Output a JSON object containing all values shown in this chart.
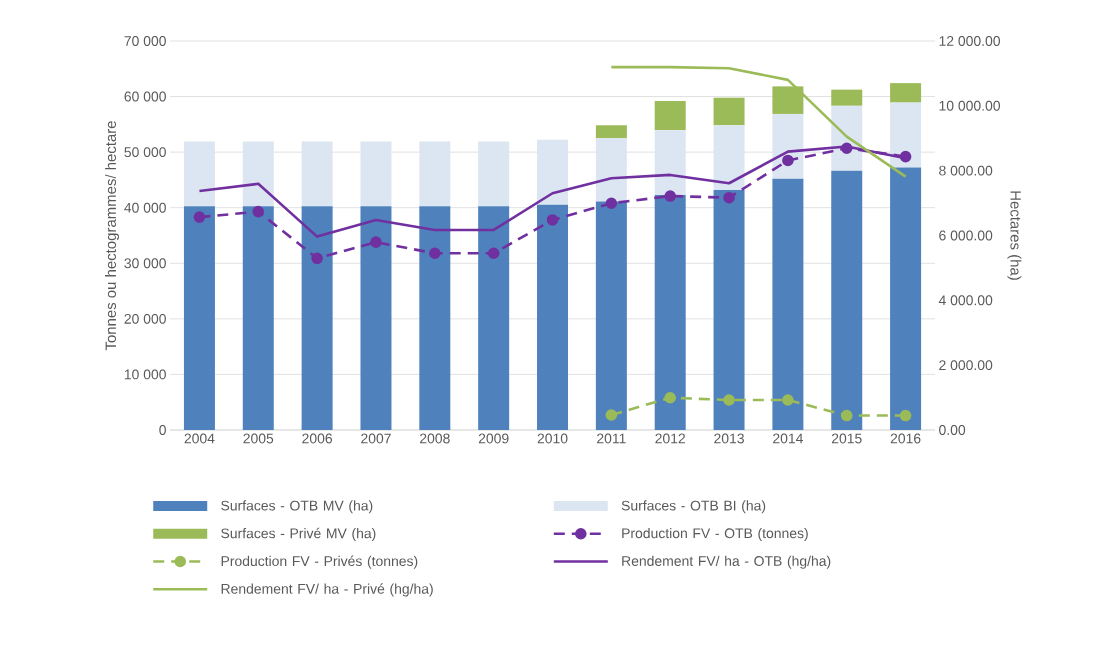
{
  "chart_data": {
    "type": "bar",
    "stacked": true,
    "grid": "y",
    "legend": "bottom",
    "categories": [
      "2004",
      "2005",
      "2006",
      "2007",
      "2008",
      "2009",
      "2010",
      "2011",
      "2012",
      "2013",
      "2014",
      "2015",
      "2016"
    ],
    "ylabel": "Tonnes ou hectogrammes/ hectare",
    "y2label": "Hectares (ha)",
    "ylim": [
      0,
      70000
    ],
    "yticks": [
      0,
      {
        "value": 10000,
        "label": "10 000"
      },
      {
        "value": 20000,
        "label": "20 000"
      },
      {
        "value": 30000,
        "label": "30 000"
      },
      {
        "value": 40000,
        "label": "40 000"
      },
      {
        "value": 50000,
        "label": "50 000"
      },
      {
        "value": 60000,
        "label": "60 000"
      },
      {
        "value": 70000,
        "label": "70 000"
      }
    ],
    "y2lim": [
      0,
      12000
    ],
    "y2ticks": [
      {
        "value": 0,
        "label": "0.00"
      },
      {
        "value": 2000,
        "label": "2 000.00"
      },
      {
        "value": 4000,
        "label": "4 000.00"
      },
      {
        "value": 6000,
        "label": "6 000.00"
      },
      {
        "value": 8000,
        "label": "8 000.00"
      },
      {
        "value": 10000,
        "label": "10 000.00"
      },
      {
        "value": 12000,
        "label": "12 000.00"
      }
    ],
    "series": [
      {
        "name": "Surfaces - OTB MV (ha)",
        "axis": "y2",
        "color": "#4f81bd",
        "values": [
          6900,
          6900,
          6900,
          6900,
          6900,
          6900,
          6950,
          7050,
          7250,
          7400,
          7750,
          8000,
          8100
        ]
      },
      {
        "name": "Surfaces - OTB BI (ha)",
        "axis": "y2",
        "color": "#dce6f2",
        "values": [
          2000,
          2000,
          2000,
          2000,
          2000,
          2000,
          2000,
          1950,
          2000,
          2000,
          2000,
          2000,
          2000
        ]
      },
      {
        "name": "Surfaces - Privé MV (ha)",
        "axis": "y2",
        "color": "#9bbb59",
        "values": [
          null,
          null,
          null,
          null,
          null,
          null,
          null,
          400,
          900,
          850,
          850,
          500,
          600
        ]
      },
      {
        "name": "Production FV - OTB (tonnes)",
        "type": "line",
        "axis": "y",
        "color": "#7030a0",
        "marker": "circle",
        "line_style": "dashed",
        "values": [
          38300,
          39300,
          30900,
          33800,
          31800,
          31800,
          37800,
          40800,
          42100,
          41800,
          48500,
          50700,
          49200
        ]
      },
      {
        "name": "Production FV - Privés (tonnes)",
        "type": "line",
        "axis": "y",
        "color": "#9bbb59",
        "marker": "circle",
        "line_style": "dashed",
        "values": [
          null,
          null,
          null,
          null,
          null,
          null,
          null,
          2700,
          5800,
          5400,
          5400,
          2600,
          2600
        ]
      },
      {
        "name": "Rendement FV/ ha - OTB (hg/ha)",
        "type": "line",
        "axis": "y",
        "color": "#7030a0",
        "marker": "none",
        "line_style": "solid",
        "values": [
          43000,
          44300,
          34800,
          37800,
          36000,
          36000,
          42600,
          45300,
          45900,
          44400,
          50100,
          51000,
          48900
        ]
      },
      {
        "name": "Rendement FV/ ha - Privé (hg/ha)",
        "type": "line",
        "axis": "y",
        "color": "#9bbb59",
        "marker": "none",
        "line_style": "solid",
        "values": [
          null,
          null,
          null,
          null,
          null,
          null,
          null,
          65300,
          65300,
          65100,
          63000,
          52800,
          45600
        ]
      }
    ]
  }
}
